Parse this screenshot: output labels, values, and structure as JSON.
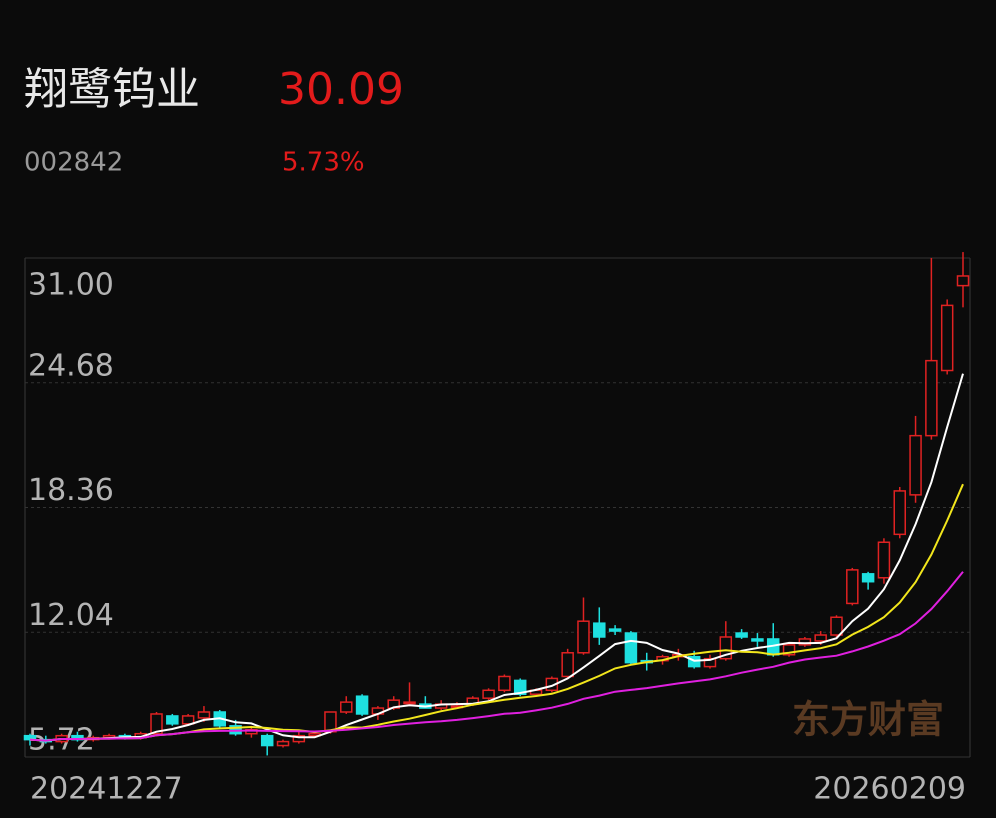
{
  "header": {
    "name": "翔鹭钨业",
    "price": "30.09",
    "code": "002842",
    "change_pct": "5.73%"
  },
  "chart_data": {
    "type": "candlestick",
    "categories": [
      "20241227",
      null,
      null,
      null,
      null,
      null,
      null,
      null,
      null,
      null,
      null,
      null,
      null,
      null,
      null,
      null,
      null,
      null,
      null,
      null,
      null,
      null,
      null,
      null,
      null,
      null,
      null,
      null,
      null,
      null,
      null,
      null,
      null,
      null,
      null,
      null,
      null,
      null,
      null,
      null,
      null,
      null,
      null,
      null,
      null,
      null,
      null,
      null,
      null,
      null,
      null,
      null,
      null,
      null,
      null,
      null,
      null,
      null,
      null,
      "20260209"
    ],
    "open": [
      6.8,
      6.6,
      6.5,
      6.8,
      6.6,
      6.7,
      6.8,
      6.7,
      6.9,
      7.8,
      7.4,
      7.7,
      8.0,
      7.3,
      6.9,
      6.8,
      6.3,
      6.5,
      6.8,
      7.0,
      8.0,
      8.8,
      7.9,
      8.2,
      8.5,
      8.4,
      8.2,
      8.3,
      8.4,
      8.7,
      9.1,
      9.6,
      8.9,
      9.1,
      9.8,
      11.0,
      12.5,
      12.2,
      12.0,
      10.6,
      10.6,
      10.8,
      10.8,
      10.3,
      10.7,
      12.0,
      11.7,
      11.7,
      10.9,
      11.4,
      11.6,
      11.9,
      13.5,
      15.0,
      14.8,
      17.0,
      19.0,
      22.0,
      25.3,
      29.6
    ],
    "high": [
      6.9,
      6.8,
      6.9,
      7.0,
      6.8,
      6.9,
      6.9,
      7.0,
      8.0,
      7.9,
      7.9,
      8.3,
      8.1,
      7.6,
      7.3,
      6.9,
      6.6,
      7.0,
      7.0,
      8.0,
      8.8,
      8.9,
      8.3,
      8.8,
      9.5,
      8.8,
      8.6,
      8.5,
      8.8,
      9.2,
      9.9,
      9.7,
      9.2,
      9.8,
      11.2,
      13.8,
      13.3,
      12.4,
      12.1,
      11.0,
      10.9,
      11.2,
      11.1,
      10.9,
      12.6,
      12.2,
      12.0,
      12.5,
      11.5,
      11.8,
      12.1,
      12.9,
      15.3,
      15.1,
      16.8,
      19.4,
      23.0,
      31.0,
      28.9,
      31.3
    ],
    "low": [
      6.3,
      6.4,
      6.4,
      6.5,
      6.5,
      6.6,
      6.6,
      6.6,
      6.8,
      7.3,
      7.3,
      7.5,
      7.2,
      6.8,
      6.7,
      5.8,
      6.2,
      6.4,
      6.7,
      6.9,
      7.9,
      7.8,
      7.6,
      8.1,
      8.4,
      8.2,
      8.1,
      8.2,
      8.3,
      8.6,
      9.0,
      8.8,
      8.8,
      9.0,
      9.7,
      10.9,
      11.4,
      11.9,
      10.4,
      10.1,
      10.4,
      10.6,
      10.2,
      10.2,
      10.6,
      11.7,
      11.3,
      10.8,
      10.8,
      11.3,
      11.4,
      11.8,
      13.4,
      14.2,
      14.5,
      16.8,
      18.6,
      21.8,
      25.1,
      28.5
    ],
    "close": [
      6.6,
      6.5,
      6.8,
      6.6,
      6.7,
      6.8,
      6.7,
      6.9,
      7.9,
      7.4,
      7.8,
      8.0,
      7.3,
      6.9,
      7.1,
      6.3,
      6.5,
      6.8,
      6.9,
      8.0,
      8.5,
      7.9,
      8.2,
      8.6,
      8.5,
      8.2,
      8.4,
      8.3,
      8.7,
      9.1,
      9.8,
      8.9,
      9.1,
      9.7,
      11.0,
      12.6,
      11.8,
      12.1,
      10.5,
      10.5,
      10.8,
      10.9,
      10.3,
      10.7,
      11.8,
      11.8,
      11.6,
      10.9,
      11.4,
      11.7,
      11.9,
      12.8,
      15.2,
      14.6,
      16.6,
      19.2,
      22.0,
      25.8,
      28.6,
      30.09
    ],
    "ma_lines": [
      {
        "color": "#ffffff",
        "values": [
          6.6,
          6.55,
          6.63,
          6.63,
          6.64,
          6.68,
          6.72,
          6.74,
          7.0,
          7.14,
          7.34,
          7.6,
          7.68,
          7.48,
          7.42,
          7.12,
          6.82,
          6.72,
          6.72,
          7.0,
          7.34,
          7.62,
          7.9,
          8.24,
          8.34,
          8.28,
          8.38,
          8.4,
          8.42,
          8.54,
          8.86,
          8.96,
          9.12,
          9.32,
          9.7,
          10.26,
          10.84,
          11.44,
          11.6,
          11.5,
          11.14,
          10.96,
          10.6,
          10.64,
          10.9,
          11.1,
          11.24,
          11.36,
          11.5,
          11.48,
          11.5,
          11.74,
          12.6,
          13.24,
          14.22,
          15.68,
          17.52,
          19.64,
          22.44,
          25.14
        ]
      },
      {
        "color": "#f2e61c",
        "values": [
          6.6,
          6.55,
          6.63,
          6.63,
          6.64,
          6.65,
          6.66,
          6.68,
          6.82,
          6.88,
          6.97,
          7.12,
          7.17,
          7.2,
          7.24,
          7.19,
          7.1,
          7.08,
          6.98,
          7.08,
          7.22,
          7.21,
          7.35,
          7.52,
          7.66,
          7.85,
          8.04,
          8.19,
          8.37,
          8.49,
          8.62,
          8.72,
          8.81,
          8.92,
          9.17,
          9.49,
          9.83,
          10.21,
          10.39,
          10.53,
          10.63,
          10.83,
          10.95,
          11.05,
          11.13,
          11.05,
          11.03,
          10.91,
          11.0,
          11.12,
          11.23,
          11.43,
          11.92,
          12.31,
          12.8,
          13.54,
          14.58,
          15.98,
          17.7,
          19.54
        ]
      },
      {
        "color": "#e020e0",
        "values": [
          6.6,
          6.55,
          6.63,
          6.63,
          6.64,
          6.65,
          6.66,
          6.68,
          6.82,
          6.88,
          6.97,
          7.02,
          7.04,
          7.05,
          7.06,
          7.04,
          7.03,
          7.02,
          7.01,
          7.05,
          7.1,
          7.17,
          7.24,
          7.34,
          7.41,
          7.48,
          7.53,
          7.6,
          7.69,
          7.79,
          7.91,
          7.96,
          8.08,
          8.22,
          8.41,
          8.67,
          8.83,
          9.03,
          9.12,
          9.21,
          9.33,
          9.45,
          9.55,
          9.65,
          9.81,
          9.99,
          10.15,
          10.29,
          10.5,
          10.66,
          10.76,
          10.85,
          11.07,
          11.32,
          11.61,
          11.94,
          12.49,
          13.22,
          14.12,
          15.11
        ]
      }
    ],
    "up_color": "#e02222",
    "down_color": "#1ee0e0",
    "ylim": [
      5.72,
      31.0
    ],
    "yticks": [
      5.72,
      12.04,
      18.36,
      24.68,
      {
        "value": 31.0,
        "label": "31.00"
      }
    ],
    "grid": true,
    "watermark": "东方财富"
  }
}
